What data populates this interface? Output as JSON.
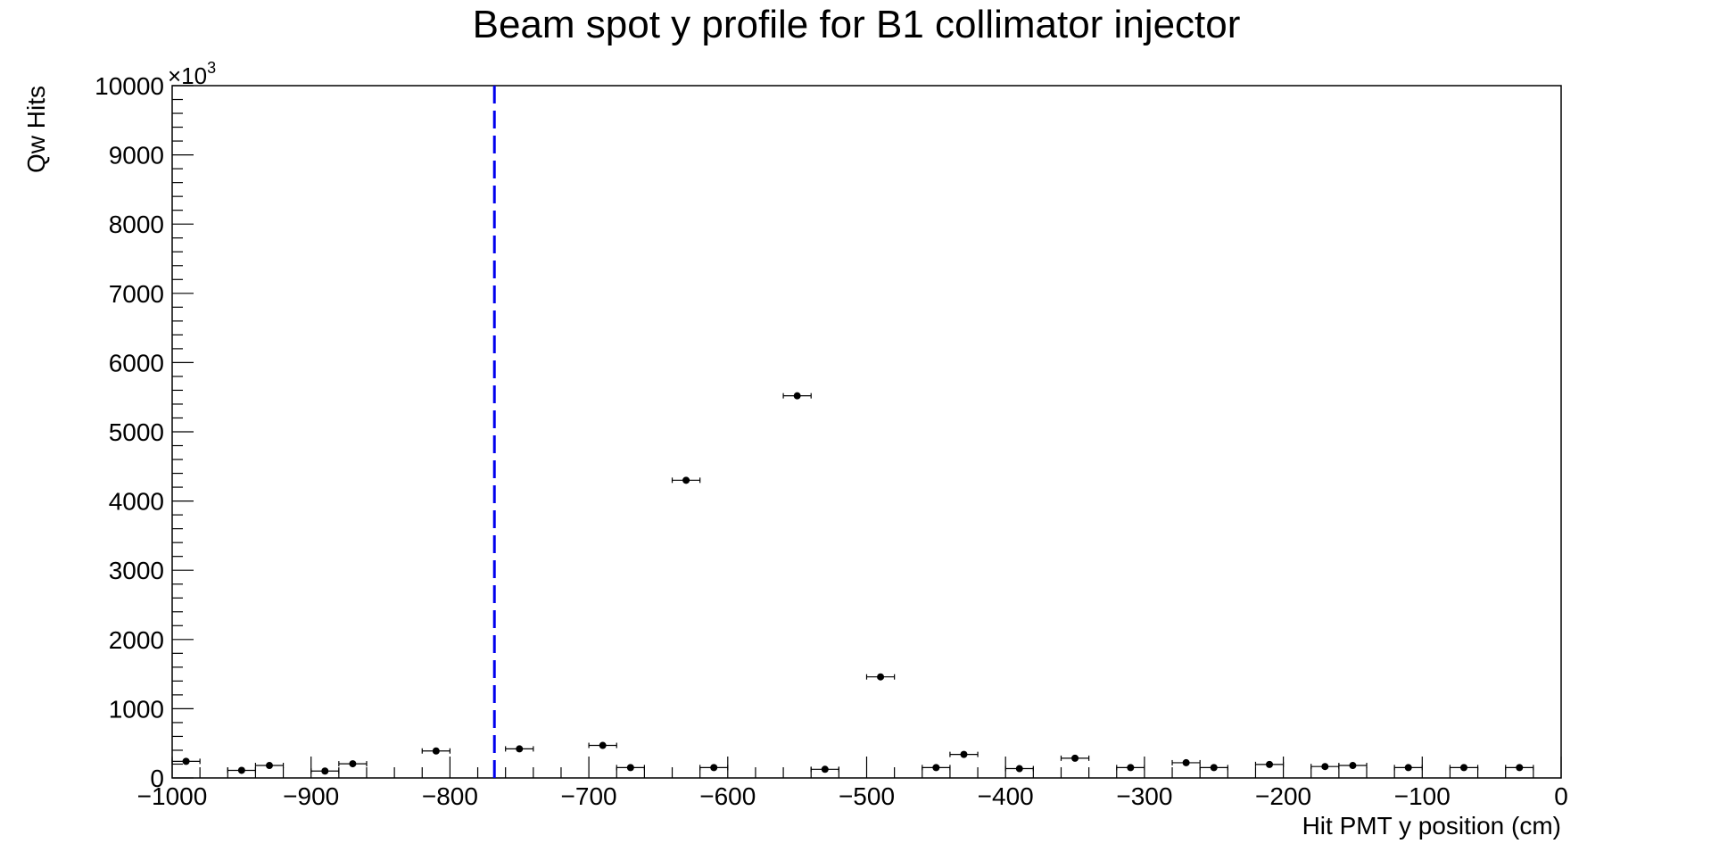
{
  "chart_data": {
    "type": "scatter",
    "title": "Beam spot y profile for B1 collimator injector",
    "xlabel": "Hit PMT y position (cm)",
    "ylabel": "Qw Hits",
    "y_multiplier_label": "×10",
    "y_multiplier_exponent": "3",
    "xlim": [
      -1000,
      0
    ],
    "ylim": [
      0,
      10000
    ],
    "x_ticks": [
      -1000,
      -900,
      -800,
      -700,
      -600,
      -500,
      -400,
      -300,
      -200,
      -100,
      0
    ],
    "x_tick_labels": [
      "−1000",
      "−900",
      "−800",
      "−700",
      "−600",
      "−500",
      "−400",
      "−300",
      "−200",
      "−100",
      "0"
    ],
    "y_ticks": [
      0,
      1000,
      2000,
      3000,
      4000,
      5000,
      6000,
      7000,
      8000,
      9000,
      10000
    ],
    "y_tick_labels": [
      "0",
      "1000",
      "2000",
      "3000",
      "4000",
      "5000",
      "6000",
      "7000",
      "8000",
      "9000",
      "10000"
    ],
    "grid": false,
    "marker_color": "#000000",
    "x_error_half_width": 10,
    "points": [
      {
        "x": -990,
        "y": 240
      },
      {
        "x": -950,
        "y": 110
      },
      {
        "x": -930,
        "y": 180
      },
      {
        "x": -890,
        "y": 100
      },
      {
        "x": -870,
        "y": 205
      },
      {
        "x": -810,
        "y": 390
      },
      {
        "x": -750,
        "y": 420
      },
      {
        "x": -690,
        "y": 470
      },
      {
        "x": -670,
        "y": 150
      },
      {
        "x": -630,
        "y": 4300
      },
      {
        "x": -610,
        "y": 150
      },
      {
        "x": -550,
        "y": 5520
      },
      {
        "x": -530,
        "y": 125
      },
      {
        "x": -490,
        "y": 1460
      },
      {
        "x": -450,
        "y": 150
      },
      {
        "x": -430,
        "y": 340
      },
      {
        "x": -390,
        "y": 135
      },
      {
        "x": -350,
        "y": 285
      },
      {
        "x": -310,
        "y": 150
      },
      {
        "x": -270,
        "y": 220
      },
      {
        "x": -250,
        "y": 150
      },
      {
        "x": -210,
        "y": 195
      },
      {
        "x": -170,
        "y": 165
      },
      {
        "x": -150,
        "y": 180
      },
      {
        "x": -110,
        "y": 150
      },
      {
        "x": -70,
        "y": 150
      },
      {
        "x": -30,
        "y": 150
      }
    ],
    "reference_line": {
      "x": -768,
      "style": "dashed",
      "color": "#0000ee"
    }
  }
}
